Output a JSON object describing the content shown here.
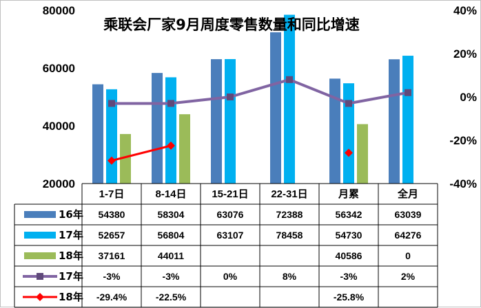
{
  "chart_data": {
    "type": "bar",
    "title": "乘联会厂家9月周度零售数量和同比增速",
    "categories": [
      "1-7日",
      "8-14日",
      "15-21日",
      "22-31日",
      "月累",
      "全月"
    ],
    "y_left": {
      "min": 20000,
      "max": 80000,
      "ticks": [
        "20000",
        "40000",
        "60000",
        "80000"
      ]
    },
    "y_right": {
      "min": -40,
      "max": 40,
      "ticks": [
        "-40%",
        "-20%",
        "0%",
        "20%",
        "40%"
      ]
    },
    "series": [
      {
        "name": "16年",
        "type": "bar",
        "color": "#4a7ebb",
        "values": [
          54380,
          58304,
          63076,
          72388,
          56342,
          63039
        ],
        "labels": [
          "54380",
          "58304",
          "63076",
          "72388",
          "56342",
          "63039"
        ]
      },
      {
        "name": "17年",
        "type": "bar",
        "color": "#00b0f0",
        "values": [
          52657,
          56804,
          63107,
          78458,
          54730,
          64276
        ],
        "labels": [
          "52657",
          "56804",
          "63107",
          "78458",
          "54730",
          "64276"
        ]
      },
      {
        "name": "18年",
        "type": "bar",
        "color": "#9bbb59",
        "values": [
          37161,
          44011,
          null,
          null,
          40586,
          0
        ],
        "labels": [
          "37161",
          "44011",
          "",
          "",
          "40586",
          "0"
        ]
      },
      {
        "name": "17年",
        "type": "line",
        "axis": "right",
        "color": "#8064a2",
        "marker": "square",
        "values": [
          -3,
          -3,
          0,
          8,
          -3,
          2
        ],
        "labels": [
          "-3%",
          "-3%",
          "0%",
          "8%",
          "-3%",
          "2%"
        ]
      },
      {
        "name": "18年",
        "type": "line",
        "axis": "right",
        "color": "#ff0000",
        "marker": "diamond",
        "values": [
          -29.4,
          -22.5,
          null,
          null,
          -25.8,
          null
        ],
        "labels": [
          "-29.4%",
          "-22.5%",
          "",
          "",
          "-25.8%",
          ""
        ]
      }
    ],
    "legend": "data-table"
  }
}
